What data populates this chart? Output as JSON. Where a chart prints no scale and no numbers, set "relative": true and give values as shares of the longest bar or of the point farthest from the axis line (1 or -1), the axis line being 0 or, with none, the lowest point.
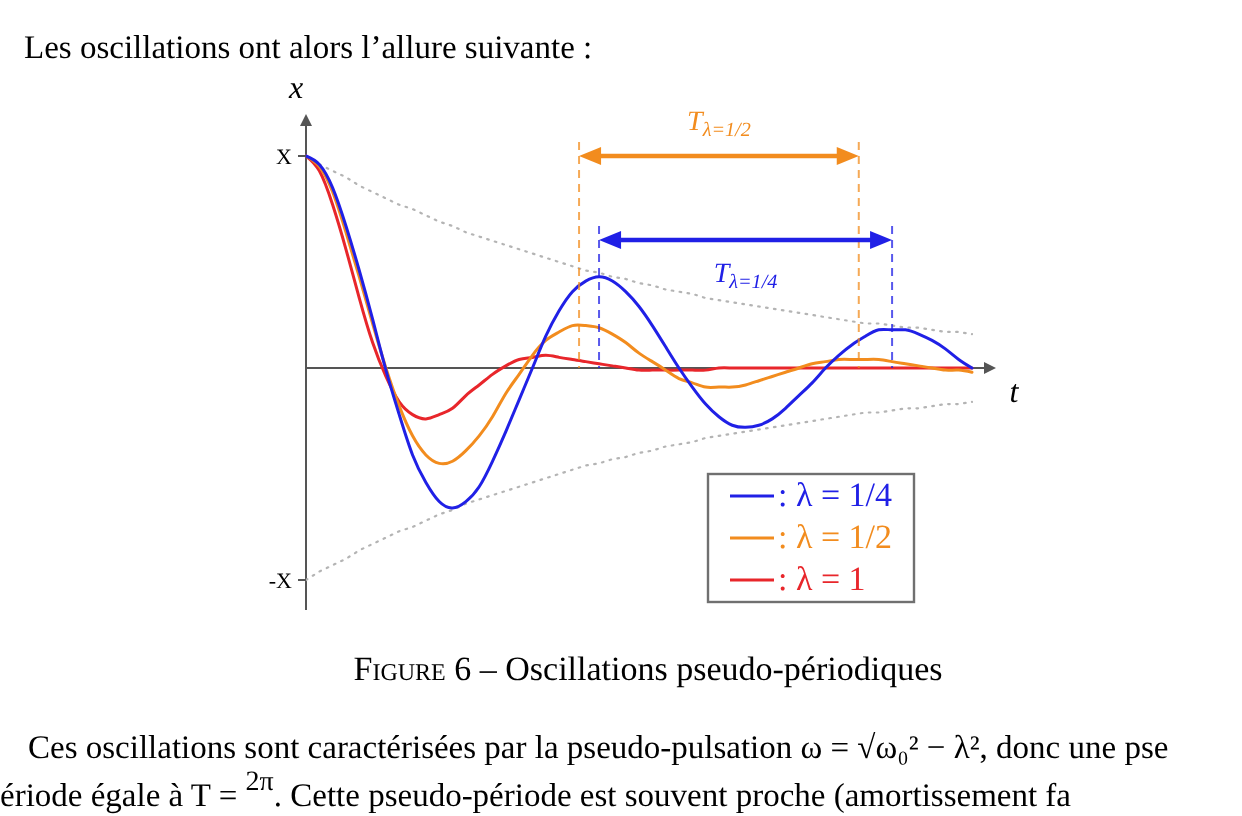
{
  "chart_data": {
    "type": "line",
    "relative": true,
    "xlabel": "t",
    "ylabel": "x",
    "legend": "bottom right",
    "categories": [
      null,
      null,
      null,
      null,
      null,
      null,
      null,
      null,
      null,
      null,
      null,
      null,
      null,
      null,
      null,
      null,
      null,
      null,
      null,
      null,
      null,
      null,
      null,
      null,
      null,
      null,
      null,
      null,
      null,
      null,
      null,
      null,
      null,
      null,
      null,
      null,
      null,
      null,
      null,
      null,
      null,
      null,
      null,
      null,
      null,
      null,
      null,
      null,
      null,
      null,
      null
    ],
    "series": [
      {
        "name": ": λ = 1/4",
        "color": "#2020e6",
        "values": [
          1.0,
          0.96,
          0.85,
          0.67,
          0.46,
          0.23,
          -0.01,
          -0.22,
          -0.41,
          -0.54,
          -0.63,
          -0.66,
          -0.63,
          -0.56,
          -0.44,
          -0.3,
          -0.15,
          0.0,
          0.15,
          0.27,
          0.36,
          0.41,
          0.43,
          0.41,
          0.36,
          0.29,
          0.2,
          0.1,
          0.0,
          -0.09,
          -0.17,
          -0.23,
          -0.27,
          -0.28,
          -0.27,
          -0.24,
          -0.19,
          -0.13,
          -0.07,
          0.0,
          0.06,
          0.11,
          0.15,
          0.18,
          0.18,
          0.18,
          0.16,
          0.13,
          0.09,
          0.04,
          0.0
        ]
      },
      {
        "name": ": λ = 1/2",
        "color": "#f28c1e",
        "values": [
          1.0,
          0.95,
          0.83,
          0.64,
          0.43,
          0.21,
          0.0,
          -0.18,
          -0.32,
          -0.41,
          -0.45,
          -0.44,
          -0.39,
          -0.32,
          -0.23,
          -0.12,
          -0.03,
          0.06,
          0.13,
          0.17,
          0.2,
          0.2,
          0.19,
          0.16,
          0.12,
          0.07,
          0.03,
          -0.01,
          -0.05,
          -0.07,
          -0.09,
          -0.09,
          -0.09,
          -0.08,
          -0.06,
          -0.04,
          -0.02,
          0.0,
          0.02,
          0.03,
          0.04,
          0.04,
          0.04,
          0.04,
          0.03,
          0.02,
          0.01,
          0.0,
          -0.01,
          -0.01,
          -0.02
        ]
      },
      {
        "name": ": λ = 1",
        "color": "#e8262b",
        "values": [
          1.0,
          0.93,
          0.77,
          0.56,
          0.33,
          0.12,
          -0.04,
          -0.16,
          -0.22,
          -0.24,
          -0.22,
          -0.19,
          -0.13,
          -0.08,
          -0.03,
          0.01,
          0.04,
          0.05,
          0.06,
          0.05,
          0.04,
          0.03,
          0.02,
          0.01,
          0.0,
          -0.01,
          -0.01,
          -0.01,
          -0.01,
          -0.01,
          -0.01,
          0.0,
          0.0,
          0.0,
          0.0,
          0.0,
          0.0,
          0.0,
          0.0,
          0.0,
          0.0,
          0.0,
          0.0,
          0.0,
          0.0,
          0.0,
          0.0,
          0.0,
          0.0,
          0.0,
          0.0
        ]
      },
      {
        "color": "#b4b4b4",
        "line_style": "dotted",
        "values": [
          1.0,
          0.96,
          0.93,
          0.9,
          0.86,
          0.83,
          0.8,
          0.77,
          0.75,
          0.72,
          0.69,
          0.67,
          0.64,
          0.62,
          0.6,
          0.58,
          0.56,
          0.54,
          0.52,
          0.5,
          0.48,
          0.46,
          0.45,
          0.43,
          0.42,
          0.4,
          0.39,
          0.37,
          0.36,
          0.35,
          0.33,
          0.32,
          0.31,
          0.3,
          0.29,
          0.28,
          0.27,
          0.26,
          0.25,
          0.24,
          0.23,
          0.22,
          0.21,
          0.21,
          0.2,
          0.19,
          0.19,
          0.18,
          0.17,
          0.17,
          0.16
        ]
      },
      {
        "color": "#b4b4b4",
        "line_style": "dotted",
        "values": [
          -1.0,
          -0.96,
          -0.93,
          -0.9,
          -0.86,
          -0.83,
          -0.8,
          -0.77,
          -0.75,
          -0.72,
          -0.69,
          -0.67,
          -0.64,
          -0.62,
          -0.6,
          -0.58,
          -0.56,
          -0.54,
          -0.52,
          -0.5,
          -0.48,
          -0.46,
          -0.45,
          -0.43,
          -0.42,
          -0.4,
          -0.39,
          -0.37,
          -0.36,
          -0.35,
          -0.33,
          -0.32,
          -0.31,
          -0.3,
          -0.29,
          -0.28,
          -0.27,
          -0.26,
          -0.25,
          -0.24,
          -0.23,
          -0.22,
          -0.21,
          -0.21,
          -0.2,
          -0.19,
          -0.19,
          -0.18,
          -0.17,
          -0.17,
          -0.16
        ]
      }
    ],
    "annotations": [
      "Les oscillations ont alors l’allure suivante :",
      "X",
      "-X",
      "T$_{λ=1/2}$",
      "T$_{λ=1/4}$",
      "Figure 6 – Oscillations pseudo-périodiques",
      "Ces oscillations sont caractérisées par la pseudo-pulsation ω = √ω₀² − λ², donc une pse",
      "ériode égale à T = $^{2π}$. Cette pseudo-période est souvent proche (amortissement fa"
    ]
  }
}
